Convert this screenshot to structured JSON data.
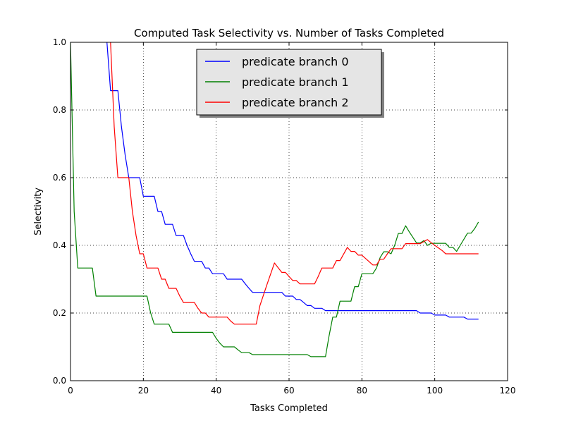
{
  "chart_data": {
    "type": "line",
    "title": "Computed Task Selectivity vs. Number of Tasks Completed",
    "xlabel": "Tasks Completed",
    "ylabel": "Selectivity",
    "xlim": [
      0,
      120
    ],
    "ylim": [
      0.0,
      1.0
    ],
    "xticks": [
      0,
      20,
      40,
      60,
      80,
      100,
      120
    ],
    "xtick_labels": [
      "0",
      "20",
      "40",
      "60",
      "80",
      "100",
      "120"
    ],
    "yticks": [
      0.0,
      0.2,
      0.4,
      0.6,
      0.8,
      1.0
    ],
    "ytick_labels": [
      "0.0",
      "0.2",
      "0.4",
      "0.6",
      "0.8",
      "1.0"
    ],
    "grid": true,
    "legend_position": "top-center",
    "series": [
      {
        "name": "predicate branch 0",
        "color": "#0000ff",
        "points": [
          [
            10,
            1.0
          ],
          [
            11,
            0.857
          ],
          [
            13,
            0.857
          ],
          [
            14,
            0.75
          ],
          [
            15,
            0.667
          ],
          [
            16,
            0.6
          ],
          [
            19,
            0.6
          ],
          [
            20,
            0.545
          ],
          [
            23,
            0.545
          ],
          [
            24,
            0.5
          ],
          [
            25,
            0.5
          ],
          [
            26,
            0.462
          ],
          [
            28,
            0.462
          ],
          [
            29,
            0.429
          ],
          [
            31,
            0.429
          ],
          [
            32,
            0.4
          ],
          [
            33,
            0.375
          ],
          [
            34,
            0.353
          ],
          [
            36,
            0.353
          ],
          [
            37,
            0.333
          ],
          [
            38,
            0.333
          ],
          [
            39,
            0.316
          ],
          [
            42,
            0.316
          ],
          [
            43,
            0.3
          ],
          [
            47,
            0.3
          ],
          [
            48,
            0.286
          ],
          [
            49,
            0.273
          ],
          [
            50,
            0.261
          ],
          [
            58,
            0.261
          ],
          [
            59,
            0.25
          ],
          [
            61,
            0.25
          ],
          [
            62,
            0.24
          ],
          [
            63,
            0.24
          ],
          [
            64,
            0.231
          ],
          [
            65,
            0.222
          ],
          [
            66,
            0.222
          ],
          [
            67,
            0.214
          ],
          [
            69,
            0.214
          ],
          [
            70,
            0.207
          ],
          [
            95,
            0.207
          ],
          [
            96,
            0.2
          ],
          [
            99,
            0.2
          ],
          [
            100,
            0.194
          ],
          [
            103,
            0.194
          ],
          [
            104,
            0.188
          ],
          [
            108,
            0.188
          ],
          [
            109,
            0.182
          ],
          [
            112,
            0.182
          ]
        ]
      },
      {
        "name": "predicate branch 1",
        "color": "#008000",
        "points": [
          [
            0,
            1.0
          ],
          [
            1,
            0.5
          ],
          [
            2,
            0.333
          ],
          [
            6,
            0.333
          ],
          [
            7,
            0.25
          ],
          [
            21,
            0.25
          ],
          [
            22,
            0.2
          ],
          [
            23,
            0.167
          ],
          [
            27,
            0.167
          ],
          [
            28,
            0.143
          ],
          [
            39,
            0.143
          ],
          [
            40,
            0.125
          ],
          [
            41,
            0.111
          ],
          [
            42,
            0.1
          ],
          [
            45,
            0.1
          ],
          [
            46,
            0.091
          ],
          [
            47,
            0.083
          ],
          [
            49,
            0.083
          ],
          [
            50,
            0.077
          ],
          [
            65,
            0.077
          ],
          [
            66,
            0.071
          ],
          [
            70,
            0.071
          ],
          [
            71,
            0.133
          ],
          [
            72,
            0.188
          ],
          [
            73,
            0.188
          ],
          [
            74,
            0.235
          ],
          [
            77,
            0.235
          ],
          [
            78,
            0.278
          ],
          [
            79,
            0.278
          ],
          [
            80,
            0.316
          ],
          [
            83,
            0.316
          ],
          [
            84,
            0.333
          ],
          [
            85,
            0.364
          ],
          [
            86,
            0.381
          ],
          [
            87,
            0.381
          ],
          [
            88,
            0.375
          ],
          [
            89,
            0.4
          ],
          [
            90,
            0.435
          ],
          [
            91,
            0.435
          ],
          [
            92,
            0.458
          ],
          [
            93,
            0.44
          ],
          [
            95,
            0.407
          ],
          [
            96,
            0.407
          ],
          [
            97,
            0.414
          ],
          [
            98,
            0.4
          ],
          [
            99,
            0.406
          ],
          [
            103,
            0.406
          ],
          [
            104,
            0.394
          ],
          [
            105,
            0.394
          ],
          [
            106,
            0.382
          ],
          [
            107,
            0.4
          ],
          [
            109,
            0.436
          ],
          [
            110,
            0.436
          ],
          [
            111,
            0.45
          ],
          [
            112,
            0.469
          ]
        ]
      },
      {
        "name": "predicate branch 2",
        "color": "#ff0000",
        "points": [
          [
            11,
            1.0
          ],
          [
            12,
            0.75
          ],
          [
            13,
            0.6
          ],
          [
            16,
            0.6
          ],
          [
            17,
            0.5
          ],
          [
            18,
            0.429
          ],
          [
            19,
            0.375
          ],
          [
            20,
            0.375
          ],
          [
            21,
            0.333
          ],
          [
            24,
            0.333
          ],
          [
            25,
            0.3
          ],
          [
            26,
            0.3
          ],
          [
            27,
            0.273
          ],
          [
            29,
            0.273
          ],
          [
            30,
            0.25
          ],
          [
            31,
            0.231
          ],
          [
            34,
            0.231
          ],
          [
            35,
            0.214
          ],
          [
            36,
            0.2
          ],
          [
            37,
            0.2
          ],
          [
            38,
            0.188
          ],
          [
            43,
            0.188
          ],
          [
            44,
            0.176
          ],
          [
            45,
            0.167
          ],
          [
            51,
            0.167
          ],
          [
            52,
            0.222
          ],
          [
            54,
            0.286
          ],
          [
            56,
            0.348
          ],
          [
            58,
            0.32
          ],
          [
            59,
            0.32
          ],
          [
            60,
            0.308
          ],
          [
            61,
            0.296
          ],
          [
            62,
            0.296
          ],
          [
            63,
            0.286
          ],
          [
            67,
            0.286
          ],
          [
            68,
            0.308
          ],
          [
            69,
            0.333
          ],
          [
            72,
            0.333
          ],
          [
            73,
            0.355
          ],
          [
            74,
            0.355
          ],
          [
            76,
            0.394
          ],
          [
            77,
            0.382
          ],
          [
            78,
            0.382
          ],
          [
            79,
            0.371
          ],
          [
            80,
            0.371
          ],
          [
            83,
            0.342
          ],
          [
            84,
            0.342
          ],
          [
            85,
            0.359
          ],
          [
            86,
            0.359
          ],
          [
            87,
            0.375
          ],
          [
            88,
            0.39
          ],
          [
            91,
            0.39
          ],
          [
            92,
            0.405
          ],
          [
            96,
            0.405
          ],
          [
            98,
            0.417
          ],
          [
            99,
            0.408
          ],
          [
            100,
            0.4
          ],
          [
            102,
            0.385
          ],
          [
            103,
            0.375
          ],
          [
            112,
            0.375
          ]
        ]
      }
    ]
  }
}
